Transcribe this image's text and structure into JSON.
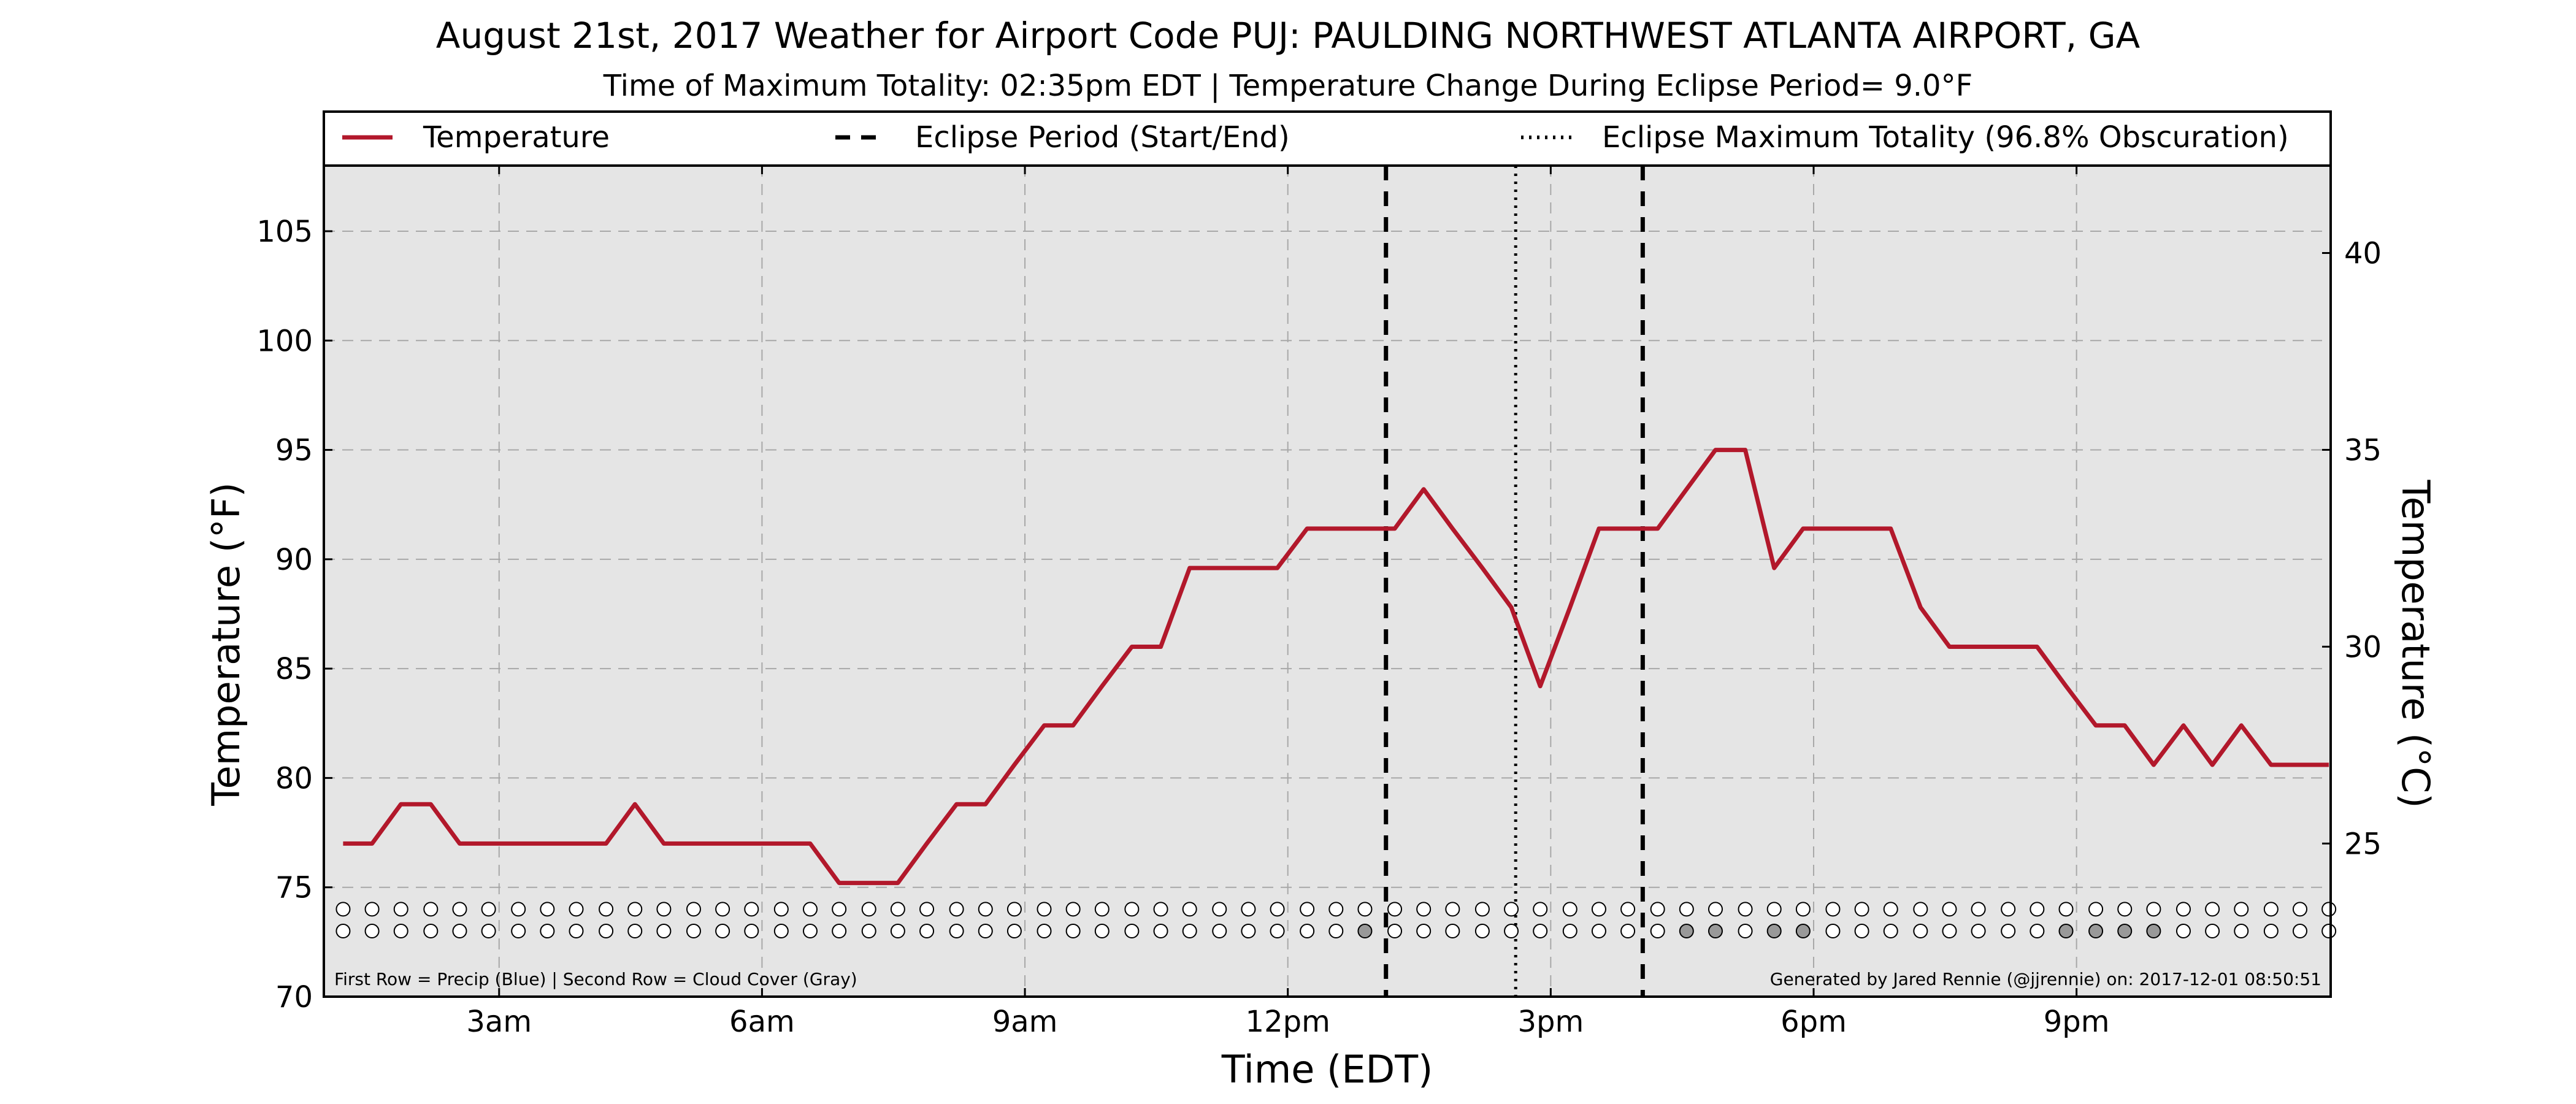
{
  "chart_data": {
    "type": "line",
    "title": "August 21st, 2017 Weather for Airport Code PUJ: PAULDING NORTHWEST ATLANTA AIRPORT, GA",
    "subtitle": "Time of Maximum Totality: 02:35pm EDT | Temperature Change During Eclipse Period= 9.0°F",
    "xlabel": "Time (EDT)",
    "ylabel": "Temperature (°F)",
    "ylabel_right": "Temperature (°C)",
    "xlim": [
      1.0,
      23.9
    ],
    "ylim": [
      70,
      108
    ],
    "ylim_right_celsius": [
      21.11,
      42.22
    ],
    "x_ticks": [
      {
        "value": 3,
        "label": "3am"
      },
      {
        "value": 6,
        "label": "6am"
      },
      {
        "value": 9,
        "label": "9am"
      },
      {
        "value": 12,
        "label": "12pm"
      },
      {
        "value": 15,
        "label": "3pm"
      },
      {
        "value": 18,
        "label": "6pm"
      },
      {
        "value": 21,
        "label": "9pm"
      }
    ],
    "y_ticks": [
      70,
      75,
      80,
      85,
      90,
      95,
      100,
      105
    ],
    "y_ticks_right": [
      25,
      30,
      35,
      40
    ],
    "grid": true,
    "legend": [
      {
        "label": "Temperature",
        "style": "solid",
        "color": "#b2182b"
      },
      {
        "label": "Eclipse Period (Start/End)",
        "style": "dashed",
        "color": "#000000"
      },
      {
        "label": "Eclipse Maximum Totality (96.8% Obscuration)",
        "style": "dotted",
        "color": "#000000"
      }
    ],
    "series": [
      {
        "name": "Temperature",
        "color": "#b2182b",
        "x": [
          1.22,
          1.55,
          1.88,
          2.22,
          2.55,
          2.88,
          3.22,
          3.55,
          3.88,
          4.22,
          4.55,
          4.88,
          5.22,
          5.55,
          5.88,
          6.22,
          6.55,
          6.88,
          7.22,
          7.55,
          7.88,
          8.22,
          8.55,
          8.88,
          9.22,
          9.55,
          9.88,
          10.22,
          10.55,
          10.88,
          11.22,
          11.55,
          11.88,
          12.22,
          12.55,
          12.88,
          13.22,
          13.55,
          13.88,
          14.22,
          14.55,
          14.88,
          15.22,
          15.55,
          15.88,
          16.22,
          16.55,
          16.88,
          17.22,
          17.55,
          17.88,
          18.22,
          18.55,
          18.88,
          19.22,
          19.55,
          19.88,
          20.22,
          20.55,
          20.88,
          21.22,
          21.55,
          21.88,
          22.22,
          22.55,
          22.88,
          23.22,
          23.55,
          23.88
        ],
        "y": [
          77.0,
          77.0,
          78.8,
          78.8,
          77.0,
          77.0,
          77.0,
          77.0,
          77.0,
          77.0,
          78.8,
          77.0,
          77.0,
          77.0,
          77.0,
          77.0,
          77.0,
          75.2,
          75.2,
          75.2,
          77.0,
          78.8,
          78.8,
          80.6,
          82.4,
          82.4,
          84.2,
          86.0,
          86.0,
          89.6,
          89.6,
          89.6,
          89.6,
          91.4,
          91.4,
          91.4,
          91.4,
          93.2,
          91.4,
          89.6,
          87.8,
          84.2,
          87.8,
          91.4,
          91.4,
          91.4,
          93.2,
          95.0,
          95.0,
          89.6,
          91.4,
          91.4,
          91.4,
          91.4,
          87.8,
          86.0,
          86.0,
          86.0,
          86.0,
          84.2,
          82.4,
          82.4,
          80.6,
          82.4,
          80.6,
          82.4,
          80.6,
          80.6,
          80.6
        ]
      }
    ],
    "eclipse_start": 13.12,
    "eclipse_max": 14.6,
    "eclipse_end": 16.05,
    "markers": {
      "precip_y": 74.0,
      "cloud_y": 73.0,
      "x": [
        1.22,
        1.55,
        1.88,
        2.22,
        2.55,
        2.88,
        3.22,
        3.55,
        3.88,
        4.22,
        4.55,
        4.88,
        5.22,
        5.55,
        5.88,
        6.22,
        6.55,
        6.88,
        7.22,
        7.55,
        7.88,
        8.22,
        8.55,
        8.88,
        9.22,
        9.55,
        9.88,
        10.22,
        10.55,
        10.88,
        11.22,
        11.55,
        11.88,
        12.22,
        12.55,
        12.88,
        13.22,
        13.55,
        13.88,
        14.22,
        14.55,
        14.88,
        15.22,
        15.55,
        15.88,
        16.22,
        16.55,
        16.88,
        17.22,
        17.55,
        17.88,
        18.22,
        18.55,
        18.88,
        19.22,
        19.55,
        19.88,
        20.22,
        20.55,
        20.88,
        21.22,
        21.55,
        21.88,
        22.22,
        22.55,
        22.88,
        23.22,
        23.55,
        23.88
      ],
      "precip": [
        0,
        0,
        0,
        0,
        0,
        0,
        0,
        0,
        0,
        0,
        0,
        0,
        0,
        0,
        0,
        0,
        0,
        0,
        0,
        0,
        0,
        0,
        0,
        0,
        0,
        0,
        0,
        0,
        0,
        0,
        0,
        0,
        0,
        0,
        0,
        0,
        0,
        0,
        0,
        0,
        0,
        0,
        0,
        0,
        0,
        0,
        0,
        0,
        0,
        0,
        0,
        0,
        0,
        0,
        0,
        0,
        0,
        0,
        0,
        0,
        0,
        0,
        0,
        0,
        0,
        0,
        0,
        0,
        0
      ],
      "cloud": [
        0,
        0,
        0,
        0,
        0,
        0,
        0,
        0,
        0,
        0,
        0,
        0,
        0,
        0,
        0,
        0,
        0,
        0,
        0,
        0,
        0,
        0,
        0,
        0,
        0,
        0,
        0,
        0,
        0,
        0,
        0,
        0,
        0,
        0,
        0,
        1,
        0,
        0,
        0,
        0,
        0,
        0,
        0,
        0,
        0,
        0,
        1,
        1,
        0,
        1,
        1,
        0,
        0,
        0,
        0,
        0,
        0,
        0,
        0,
        1,
        1,
        1,
        1,
        0,
        0,
        0,
        0,
        0,
        0
      ],
      "cloud_color": "#999999"
    },
    "footnote_left": "First Row = Precip (Blue) | Second Row = Cloud Cover (Gray)",
    "footnote_right": "Generated by Jared Rennie (@jjrennie) on: 2017-12-01 08:50:51"
  }
}
